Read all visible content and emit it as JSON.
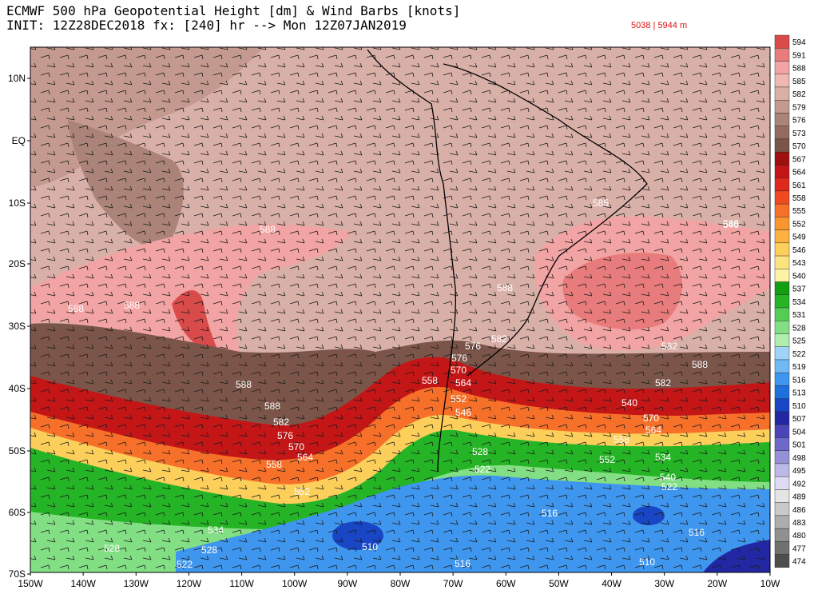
{
  "header": {
    "title": "ECMWF 500 hPa Geopotential Height [dm] & Wind Barbs [knots]",
    "init_line": "INIT: 12Z28DEC2018 fx: [240] hr --> Mon 12Z07JAN2019",
    "range": "5038 | 5944 m"
  },
  "map": {
    "lat_labels": [
      "10N",
      "EQ",
      "10S",
      "20S",
      "30S",
      "40S",
      "50S",
      "60S",
      "70S"
    ],
    "lon_labels": [
      "150W",
      "140W",
      "130W",
      "120W",
      "110W",
      "100W",
      "90W",
      "80W",
      "70W",
      "60W",
      "50W",
      "40W",
      "30W",
      "20W",
      "10W"
    ],
    "contour_labels": [
      {
        "text": "588"
      },
      {
        "text": "588"
      },
      {
        "text": "588"
      },
      {
        "text": "588"
      },
      {
        "text": "585"
      },
      {
        "text": "588"
      },
      {
        "text": "588"
      },
      {
        "text": "582"
      },
      {
        "text": "576"
      },
      {
        "text": "582"
      },
      {
        "text": "588"
      },
      {
        "text": "582"
      },
      {
        "text": "576"
      },
      {
        "text": "570"
      },
      {
        "text": "564"
      },
      {
        "text": "558"
      },
      {
        "text": "552"
      },
      {
        "text": "546"
      },
      {
        "text": "540"
      },
      {
        "text": "588"
      },
      {
        "text": "582"
      },
      {
        "text": "576"
      },
      {
        "text": "570"
      },
      {
        "text": "564"
      },
      {
        "text": "558"
      },
      {
        "text": "552"
      },
      {
        "text": "540"
      },
      {
        "text": "570"
      },
      {
        "text": "564"
      },
      {
        "text": "558"
      },
      {
        "text": "552"
      },
      {
        "text": "534"
      },
      {
        "text": "540"
      },
      {
        "text": "528"
      },
      {
        "text": "522"
      },
      {
        "text": "528"
      },
      {
        "text": "522"
      },
      {
        "text": "516"
      },
      {
        "text": "516"
      },
      {
        "text": "510"
      },
      {
        "text": "516"
      },
      {
        "text": "510"
      },
      {
        "text": "534"
      },
      {
        "text": "528"
      },
      {
        "text": "522"
      }
    ]
  },
  "colorbar": {
    "levels": [
      "594",
      "591",
      "588",
      "585",
      "582",
      "579",
      "576",
      "573",
      "570",
      "567",
      "564",
      "561",
      "558",
      "555",
      "552",
      "549",
      "546",
      "543",
      "540",
      "537",
      "534",
      "531",
      "528",
      "525",
      "522",
      "519",
      "516",
      "513",
      "510",
      "507",
      "504",
      "501",
      "498",
      "495",
      "492",
      "489",
      "486",
      "483",
      "480",
      "477",
      "474"
    ],
    "colors": [
      "#d94a4a",
      "#e87c7c",
      "#f2a3a3",
      "#efb8b3",
      "#d9b0a8",
      "#c49a90",
      "#ab8379",
      "#936b61",
      "#7b5549",
      "#9e1010",
      "#c41616",
      "#dd2a1a",
      "#ef4a20",
      "#f7702a",
      "#fa9530",
      "#fbb240",
      "#fcce5a",
      "#fbe47e",
      "#fcf4a4",
      "#139e13",
      "#25b425",
      "#55cd55",
      "#83df83",
      "#b0eeb0",
      "#9fd3f7",
      "#70baf4",
      "#3f96ee",
      "#1f6fdf",
      "#1846c4",
      "#2228a3",
      "#4b46b8",
      "#6e69c9",
      "#9590d8",
      "#bcb8e7",
      "#dedbf3",
      "#e4e4e4",
      "#c9c9c9",
      "#adadad",
      "#909090",
      "#707070",
      "#4e4e4e"
    ]
  },
  "colors": {
    "tropical_ridge": "#d9b0a8",
    "high_core": "#f2a3a3",
    "jet_red": "#c41616",
    "midlat_green": "#25b425",
    "polar_blue": "#3f96ee"
  }
}
